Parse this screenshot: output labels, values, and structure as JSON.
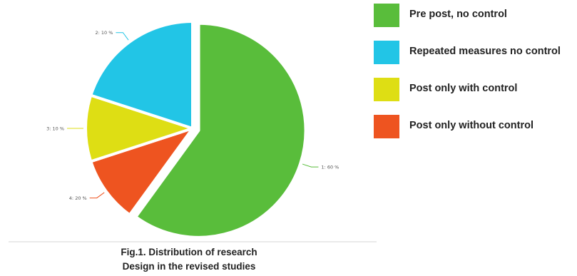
{
  "chart_data": {
    "type": "pie",
    "categories": [
      "Pre post, no control",
      "Repeated measures no control",
      "Post only with control",
      "Post only without control"
    ],
    "slice_labels": [
      "1: 60 %",
      "4: 20 %",
      "3: 10 %",
      "2: 10 %"
    ],
    "slice_order": [
      0,
      3,
      2,
      1
    ],
    "values": [
      60,
      20,
      10,
      10
    ],
    "colors": [
      "#59bd3b",
      "#22c5e6",
      "#dede14",
      "#ee5420"
    ],
    "legend_position": "right",
    "legend": [
      {
        "label": "Pre post, no control",
        "color": "#59bd3b"
      },
      {
        "label": "Repeated measures no control",
        "color": "#22c5e6"
      },
      {
        "label": "Post only with control",
        "color": "#dede14"
      },
      {
        "label": "Post only without control",
        "color": "#ee5420"
      }
    ]
  },
  "caption": {
    "line1": "Fig.1. Distribution of research",
    "line2": "Design in the revised studies"
  }
}
